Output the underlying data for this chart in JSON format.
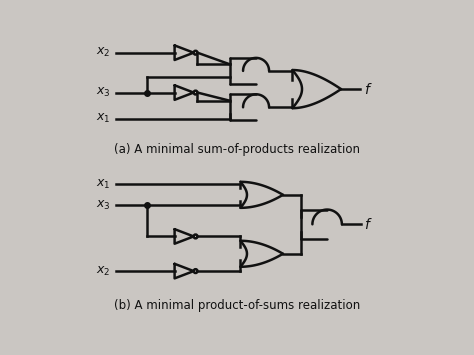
{
  "bg_color": "#cac6c2",
  "line_color": "#111111",
  "title_a": "(a) A minimal sum-of-products realization",
  "title_b": "(b) A minimal product-of-sums realization",
  "title_fontsize": 8.5,
  "label_fontsize": 9
}
